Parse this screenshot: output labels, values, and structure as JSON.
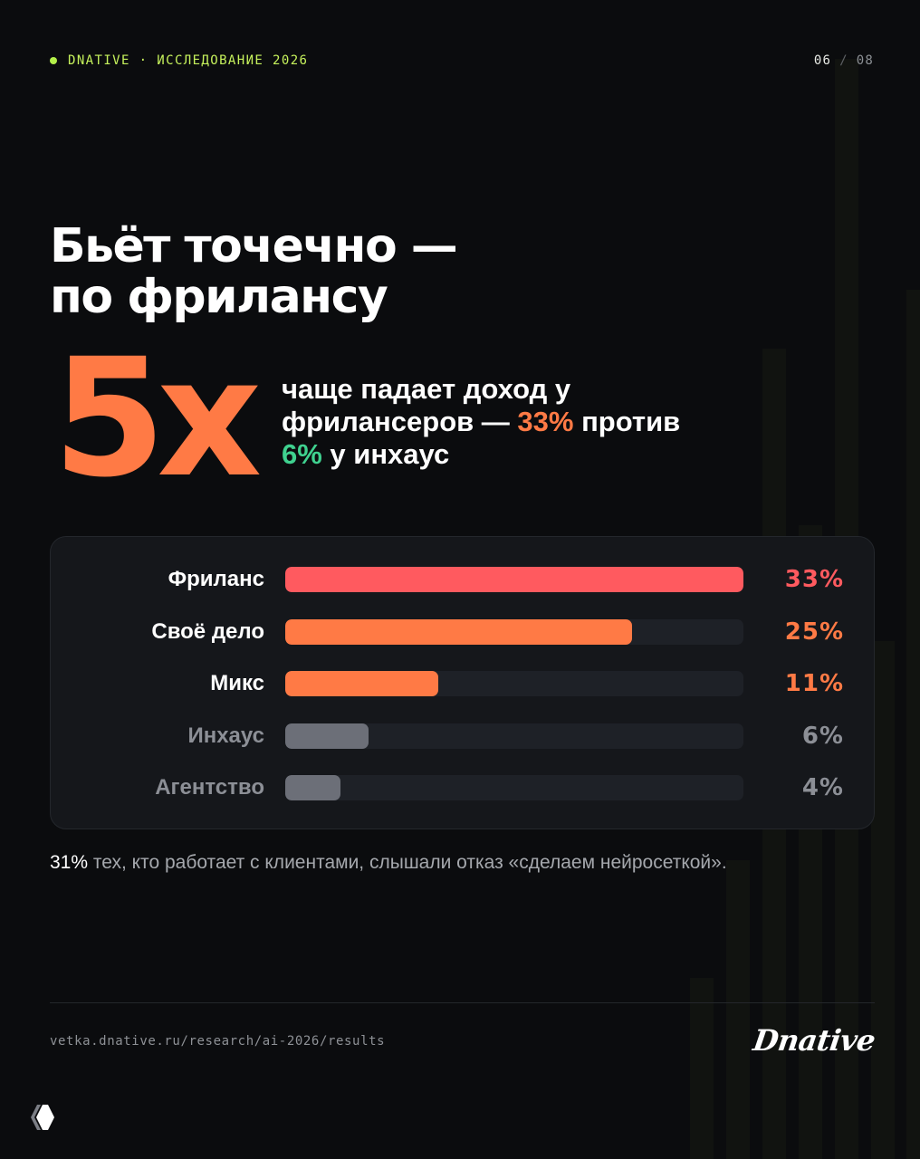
{
  "header": {
    "kicker": "DNATIVE · ИССЛЕДОВАНИЕ 2026",
    "page_current": "06",
    "page_separator": "/",
    "page_total": "08"
  },
  "headline": {
    "line1": "Бьёт точечно —",
    "line2": "по фрилансу"
  },
  "highlight": {
    "big_number": "5x",
    "text_before": "чаще падает доход у фрилансеров — ",
    "freelance_pct": "33%",
    "text_middle": " против ",
    "inhouse_pct": "6%",
    "text_after": " у инхаус"
  },
  "colors": {
    "accent_lime": "#c6f25c",
    "accent_orange": "#ff7a45",
    "accent_red": "#ff5a5f",
    "accent_green": "#3fd18f",
    "muted_gray": "#6c6f78",
    "background": "#0b0c0e"
  },
  "chart_data": {
    "type": "bar",
    "orientation": "horizontal",
    "categories": [
      "Фриланс",
      "Своё дело",
      "Микс",
      "Инхаус",
      "Агентство"
    ],
    "values": [
      33,
      25,
      11,
      6,
      4
    ],
    "value_labels": [
      "33%",
      "25%",
      "11%",
      "6%",
      "4%"
    ],
    "xlim": [
      0,
      33
    ],
    "unit": "%",
    "bar_colors": [
      "#ff5a5f",
      "#ff7a45",
      "#ff7a45",
      "#6c6f78",
      "#6c6f78"
    ],
    "label_colors": [
      "#ffffff",
      "#ffffff",
      "#ffffff",
      "#8c8f96",
      "#8c8f96"
    ],
    "value_colors": [
      "#ff5a5f",
      "#ff7a45",
      "#ff7a45",
      "#8c8f96",
      "#8c8f96"
    ],
    "grid": false,
    "legend": "none"
  },
  "note": {
    "strong": "31%",
    "text": " тех, кто работает с клиентами, слышали отказ «сделаем нейросеткой»."
  },
  "footer": {
    "url": "vetka.dnative.ru/research/ai-2026/results",
    "brand": "Dnative"
  },
  "icons": {
    "app_logo": "app-logo-icon"
  }
}
